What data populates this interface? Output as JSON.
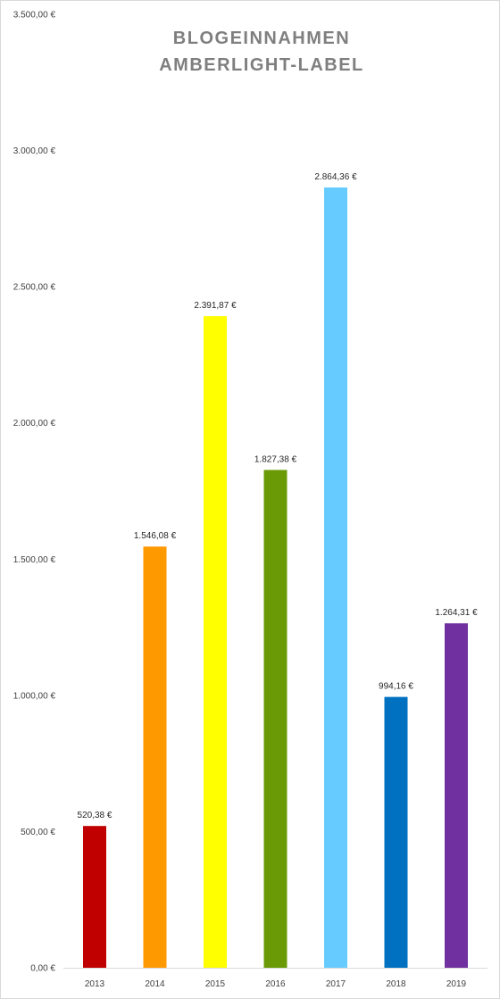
{
  "chart_data": {
    "type": "bar",
    "title_lines": [
      "BLOGEINNAHMEN",
      "AMBERLIGHT-LABEL"
    ],
    "categories": [
      "2013",
      "2014",
      "2015",
      "2016",
      "2017",
      "2018",
      "2019"
    ],
    "values": [
      520.38,
      1546.08,
      2391.87,
      1827.38,
      2864.36,
      994.16,
      1264.31
    ],
    "data_labels": [
      "520,38 €",
      "1.546,08 €",
      "2.391,87 €",
      "1.827,38 €",
      "2.864,36 €",
      "994,16 €",
      "1.264,31 €"
    ],
    "bar_colors": [
      "#c00000",
      "#ff9900",
      "#ffff00",
      "#6a9a06",
      "#66ccff",
      "#0070c0",
      "#7030a0"
    ],
    "ylim": [
      0,
      3500
    ],
    "yticks": [
      0,
      500,
      1000,
      1500,
      2000,
      2500,
      3000,
      3500
    ],
    "ytick_labels": [
      "0,00 €",
      "500,00 €",
      "1.000,00 €",
      "1.500,00 €",
      "2.000,00 €",
      "2.500,00 €",
      "3.000,00 €",
      "3.500,00 €"
    ],
    "grid": false,
    "legend": "none",
    "xlabel": "",
    "ylabel": ""
  }
}
